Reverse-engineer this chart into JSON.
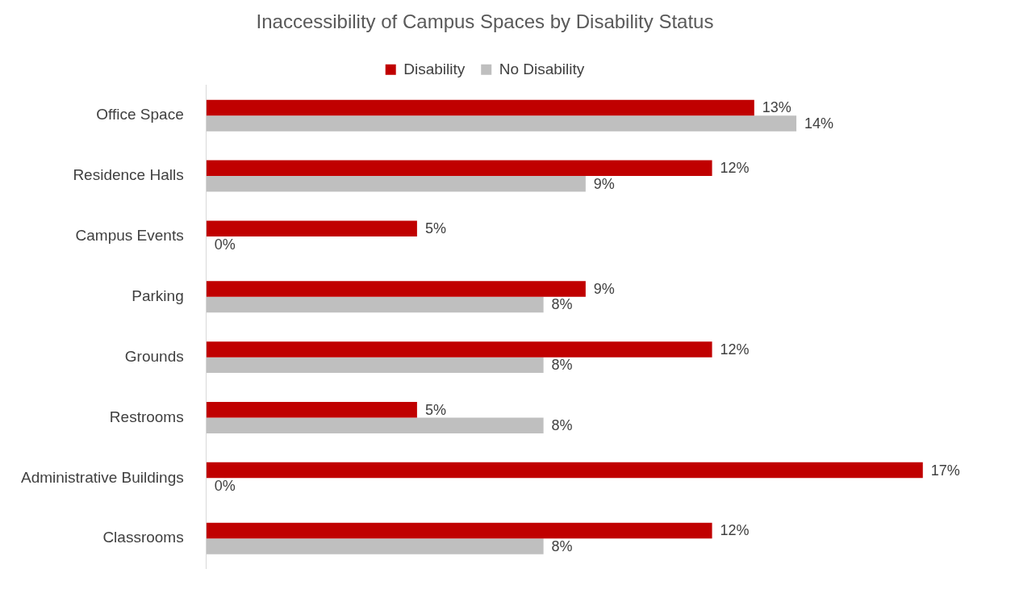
{
  "chart_data": {
    "type": "bar",
    "orientation": "horizontal",
    "title": "Inaccessibility of Campus Spaces by Disability Status",
    "categories": [
      "Office Space",
      "Residence Halls",
      "Campus Events",
      "Parking",
      "Grounds",
      "Restrooms",
      "Administrative Buildings",
      "Classrooms"
    ],
    "series": [
      {
        "name": "Disability",
        "color": "#c00000",
        "values": [
          13,
          12,
          5,
          9,
          12,
          5,
          17,
          12
        ],
        "value_labels": [
          "13%",
          "12%",
          "5%",
          "9%",
          "12%",
          "5%",
          "17%",
          "12%"
        ]
      },
      {
        "name": "No Disability",
        "color": "#bfbfbf",
        "values": [
          14,
          9,
          0,
          8,
          8,
          8,
          0,
          8
        ],
        "value_labels": [
          "14%",
          "9%",
          "0%",
          "8%",
          "8%",
          "8%",
          "0%",
          "8%"
        ]
      }
    ],
    "legend": "top"
  }
}
